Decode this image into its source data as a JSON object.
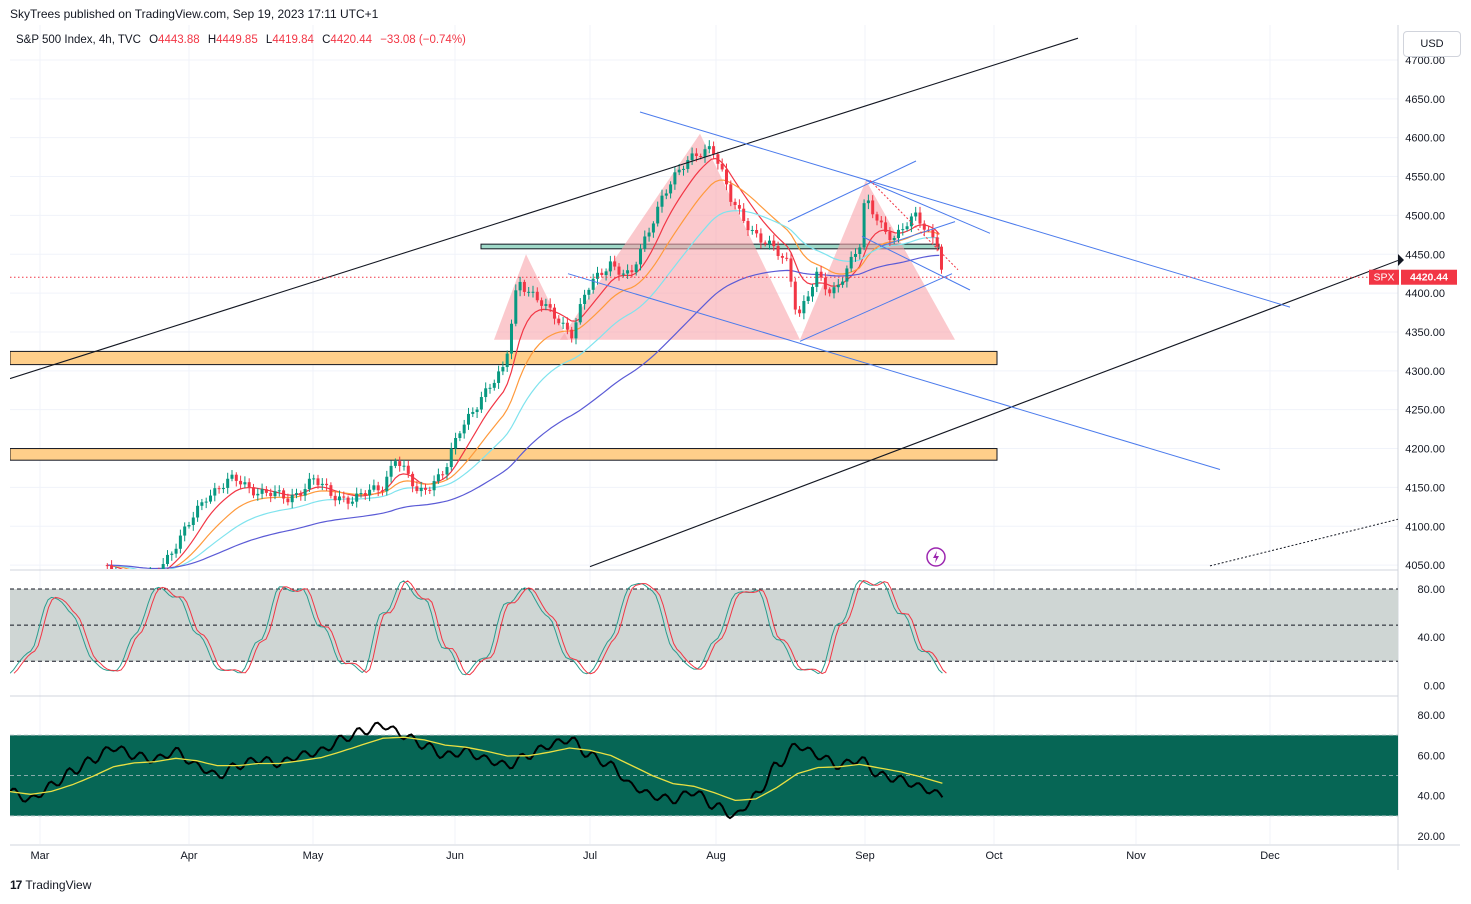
{
  "header": {
    "publisher_line": "SkyTrees published on TradingView.com, Sep 19, 2023 17:11 UTC+1",
    "currency_button": "USD",
    "footer_brand": "TradingView",
    "footer_logo": "17"
  },
  "legend": {
    "symbol": "S&P 500 Index, 4h, TVC",
    "o_label": "O",
    "o_value": "4443.88",
    "h_label": "H",
    "h_value": "4449.85",
    "l_label": "L",
    "l_value": "4419.84",
    "c_label": "C",
    "c_value": "4420.44",
    "change": "−33.08 (−0.74%)"
  },
  "price_tag": {
    "symbol": "SPX",
    "value": "4420.44"
  },
  "colors": {
    "up": "#089981",
    "down": "#f23645",
    "ma_red": "#f23645",
    "ma_orange": "#ff9a3c",
    "ma_cyan": "#7fe3ee",
    "ma_purple": "#5b5bd6",
    "trend_blue": "#4b7bec",
    "zone_orange": "#ffcf8a",
    "rsi_fill": "#066655",
    "stoch_fill": "#cfd6d4"
  },
  "chart_data": [
    {
      "type": "candlestick",
      "title": "",
      "symbol": "SPX",
      "timeframe": "4h",
      "x_labels": [
        "Mar",
        "Apr",
        "May",
        "Jun",
        "Jul",
        "Aug",
        "Sep",
        "Oct",
        "Nov",
        "Dec"
      ],
      "y_ticks": [
        "4700.00",
        "4650.00",
        "4600.00",
        "4550.00",
        "4500.00",
        "4450.00",
        "4400.00",
        "4350.00",
        "4300.00",
        "4250.00",
        "4200.00",
        "4150.00",
        "4100.00",
        "4050.00"
      ],
      "ylim": [
        4045,
        4745
      ],
      "close_series": {
        "dates": [
          "Mar 15",
          "Mar 22",
          "Mar 30",
          "Apr 5",
          "Apr 12",
          "Apr 18",
          "Apr 25",
          "May 1",
          "May 5",
          "May 10",
          "May 16",
          "May 19",
          "May 24",
          "May 30",
          "Jun 2",
          "Jun 7",
          "Jun 12",
          "Jun 15",
          "Jun 21",
          "Jun 27",
          "Jun 30",
          "Jul 6",
          "Jul 11",
          "Jul 14",
          "Jul 19",
          "Jul 27",
          "Jul 31",
          "Aug 4",
          "Aug 10",
          "Aug 16",
          "Aug 18",
          "Aug 22",
          "Aug 25",
          "Aug 31",
          "Sep 1",
          "Sep 6",
          "Sep 8",
          "Sep 13",
          "Sep 18",
          "Sep 19"
        ],
        "close": [
          4050,
          4020,
          4080,
          4140,
          4160,
          4145,
          4135,
          4160,
          4140,
          4135,
          4150,
          4190,
          4140,
          4175,
          4220,
          4270,
          4300,
          4420,
          4380,
          4350,
          4400,
          4440,
          4420,
          4460,
          4530,
          4580,
          4590,
          4520,
          4470,
          4440,
          4370,
          4420,
          4400,
          4460,
          4520,
          4480,
          4470,
          4500,
          4465,
          4420.44
        ]
      },
      "horizontal_levels": [
        4460
      ],
      "zones": [
        [
          4308,
          4325
        ],
        [
          4185,
          4200
        ]
      ],
      "last_price": 4420.44,
      "pattern": "head-and-shoulders"
    },
    {
      "type": "line",
      "title": "",
      "y_ticks": [
        "80.00",
        "40.00",
        "0.00"
      ],
      "ylim": [
        -8,
        95
      ],
      "band": [
        20,
        80
      ],
      "series": [
        {
          "values": [
            10,
            30,
            75,
            60,
            20,
            10,
            40,
            80,
            75,
            45,
            15,
            10,
            35,
            80,
            80,
            50,
            20,
            12,
            60,
            85,
            70,
            30,
            10,
            25,
            70,
            80,
            55,
            20,
            10,
            40,
            85,
            80,
            30,
            12,
            35,
            75,
            80,
            40,
            15,
            10,
            50,
            85,
            85,
            60,
            30,
            12
          ]
        }
      ]
    },
    {
      "type": "line",
      "title": "",
      "y_ticks": [
        "80.00",
        "60.00",
        "40.00",
        "20.00"
      ],
      "ylim": [
        16,
        89
      ],
      "band": [
        30,
        70
      ],
      "series": [
        {
          "values": [
            42,
            38,
            45,
            52,
            58,
            64,
            60,
            58,
            62,
            55,
            50,
            55,
            58,
            56,
            60,
            62,
            68,
            72,
            75,
            70,
            65,
            60,
            62,
            58,
            55,
            60,
            65,
            68,
            60,
            55,
            45,
            40,
            38,
            42,
            35,
            30,
            40,
            55,
            65,
            60,
            55,
            58,
            50,
            48,
            44,
            40
          ]
        }
      ]
    }
  ]
}
